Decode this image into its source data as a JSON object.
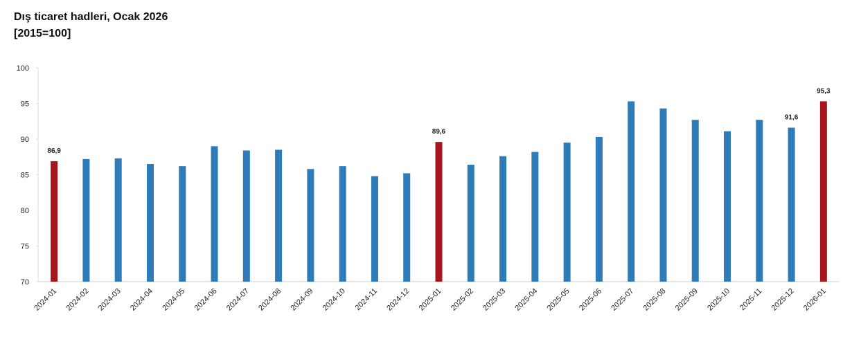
{
  "chart_data": {
    "type": "bar",
    "title": "Dış ticaret hadleri, Ocak 2026",
    "subtitle": "[2015=100]",
    "categories": [
      "2024-01",
      "2024-02",
      "2024-03",
      "2024-04",
      "2024-05",
      "2024-06",
      "2024-07",
      "2024-08",
      "2024-09",
      "2024-10",
      "2024-11",
      "2024-12",
      "2025-01",
      "2025-02",
      "2025-03",
      "2025-04",
      "2025-05",
      "2025-06",
      "2025-07",
      "2025-08",
      "2025-09",
      "2025-10",
      "2025-11",
      "2025-12",
      "2026-01"
    ],
    "values": [
      86.9,
      87.2,
      87.3,
      86.5,
      86.2,
      89.0,
      88.4,
      88.5,
      85.8,
      86.2,
      84.8,
      85.2,
      89.6,
      86.4,
      87.6,
      88.2,
      89.5,
      90.3,
      95.3,
      94.3,
      92.7,
      91.1,
      92.7,
      91.6,
      95.3
    ],
    "value_labels": [
      "86,9",
      null,
      null,
      null,
      null,
      null,
      null,
      null,
      null,
      null,
      null,
      null,
      "89,6",
      null,
      null,
      null,
      null,
      null,
      null,
      null,
      null,
      null,
      null,
      "91,6",
      "95,3"
    ],
    "colors": [
      "#a6161c",
      "#2e7bb8",
      "#2e7bb8",
      "#2e7bb8",
      "#2e7bb8",
      "#2e7bb8",
      "#2e7bb8",
      "#2e7bb8",
      "#2e7bb8",
      "#2e7bb8",
      "#2e7bb8",
      "#2e7bb8",
      "#a6161c",
      "#2e7bb8",
      "#2e7bb8",
      "#2e7bb8",
      "#2e7bb8",
      "#2e7bb8",
      "#2e7bb8",
      "#2e7bb8",
      "#2e7bb8",
      "#2e7bb8",
      "#2e7bb8",
      "#2e7bb8",
      "#a6161c"
    ],
    "ylim": [
      70,
      100
    ],
    "yticks": [
      70,
      75,
      80,
      85,
      90,
      95,
      100
    ],
    "grid": false
  }
}
